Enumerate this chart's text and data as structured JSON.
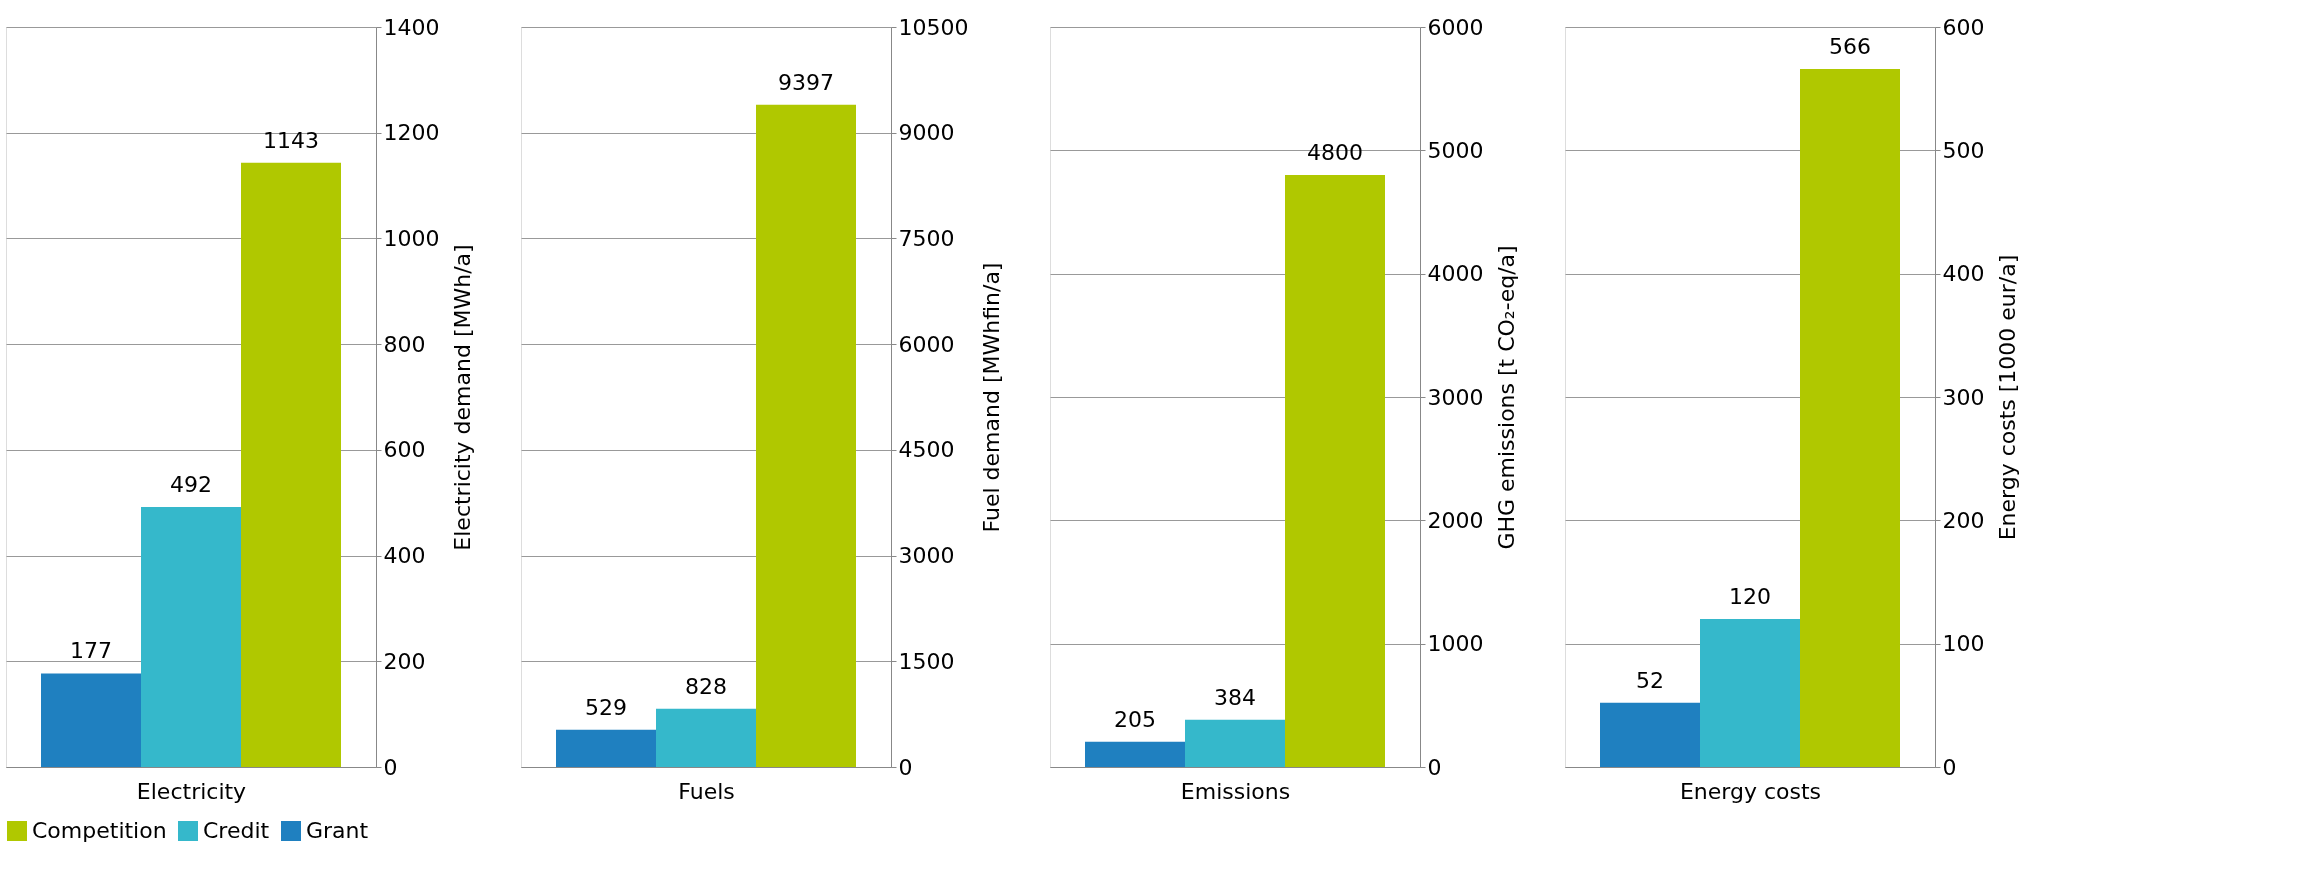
{
  "chart_data": [
    {
      "type": "bar",
      "categories": [
        null,
        null,
        null
      ],
      "xlabel": "Electricity",
      "ylabel": "Electricity demand [MWh/a]",
      "ylim": [
        0,
        1400
      ],
      "yticks": [
        0,
        200,
        400,
        600,
        800,
        1000,
        1200,
        1400
      ],
      "grid": "y",
      "legend": "bottom",
      "data_labels": true,
      "series": [
        {
          "name": "Competition",
          "color": "#b0c800",
          "values": [
            null,
            null,
            1143
          ]
        },
        {
          "name": "Credit",
          "color": "#35b8cb",
          "values": [
            null,
            492,
            null
          ]
        },
        {
          "name": "Grant",
          "color": "#1f80c0",
          "values": [
            177,
            null,
            null
          ]
        }
      ]
    },
    {
      "type": "bar",
      "categories": [
        null,
        null,
        null
      ],
      "xlabel": "Fuels",
      "ylabel": "Fuel demand [MWhfin/a]",
      "ylim": [
        0,
        10500
      ],
      "yticks": [
        0,
        1500,
        3000,
        4500,
        6000,
        7500,
        9000,
        10500
      ],
      "grid": "y",
      "data_labels": true,
      "series": [
        {
          "color": "#b0c800",
          "values": [
            null,
            null,
            9397
          ]
        },
        {
          "color": "#35b8cb",
          "values": [
            null,
            828,
            null
          ]
        },
        {
          "color": "#1f80c0",
          "values": [
            529,
            null,
            null
          ]
        }
      ]
    },
    {
      "type": "bar",
      "categories": [
        null,
        null,
        null
      ],
      "xlabel": "Emissions",
      "ylabel": "GHG emissions [t CO₂-eq/a]",
      "ylim": [
        0,
        6000
      ],
      "yticks": [
        0,
        1000,
        2000,
        3000,
        4000,
        5000,
        6000
      ],
      "grid": "y",
      "data_labels": true,
      "series": [
        {
          "color": "#b0c800",
          "values": [
            null,
            null,
            4800
          ]
        },
        {
          "color": "#35b8cb",
          "values": [
            null,
            384,
            null
          ]
        },
        {
          "color": "#1f80c0",
          "values": [
            205,
            null,
            null
          ]
        }
      ]
    },
    {
      "type": "bar",
      "categories": [
        null,
        null,
        null
      ],
      "xlabel": "Energy costs",
      "ylabel": "Energy costs [1000 eur/a]",
      "ylim": [
        0,
        600
      ],
      "yticks": [
        0,
        100,
        200,
        300,
        400,
        500,
        600
      ],
      "grid": "y",
      "data_labels": true,
      "series": [
        {
          "color": "#b0c800",
          "values": [
            null,
            null,
            566
          ]
        },
        {
          "color": "#35b8cb",
          "values": [
            null,
            120,
            null
          ]
        },
        {
          "color": "#1f80c0",
          "values": [
            52,
            null,
            null
          ]
        }
      ]
    }
  ]
}
